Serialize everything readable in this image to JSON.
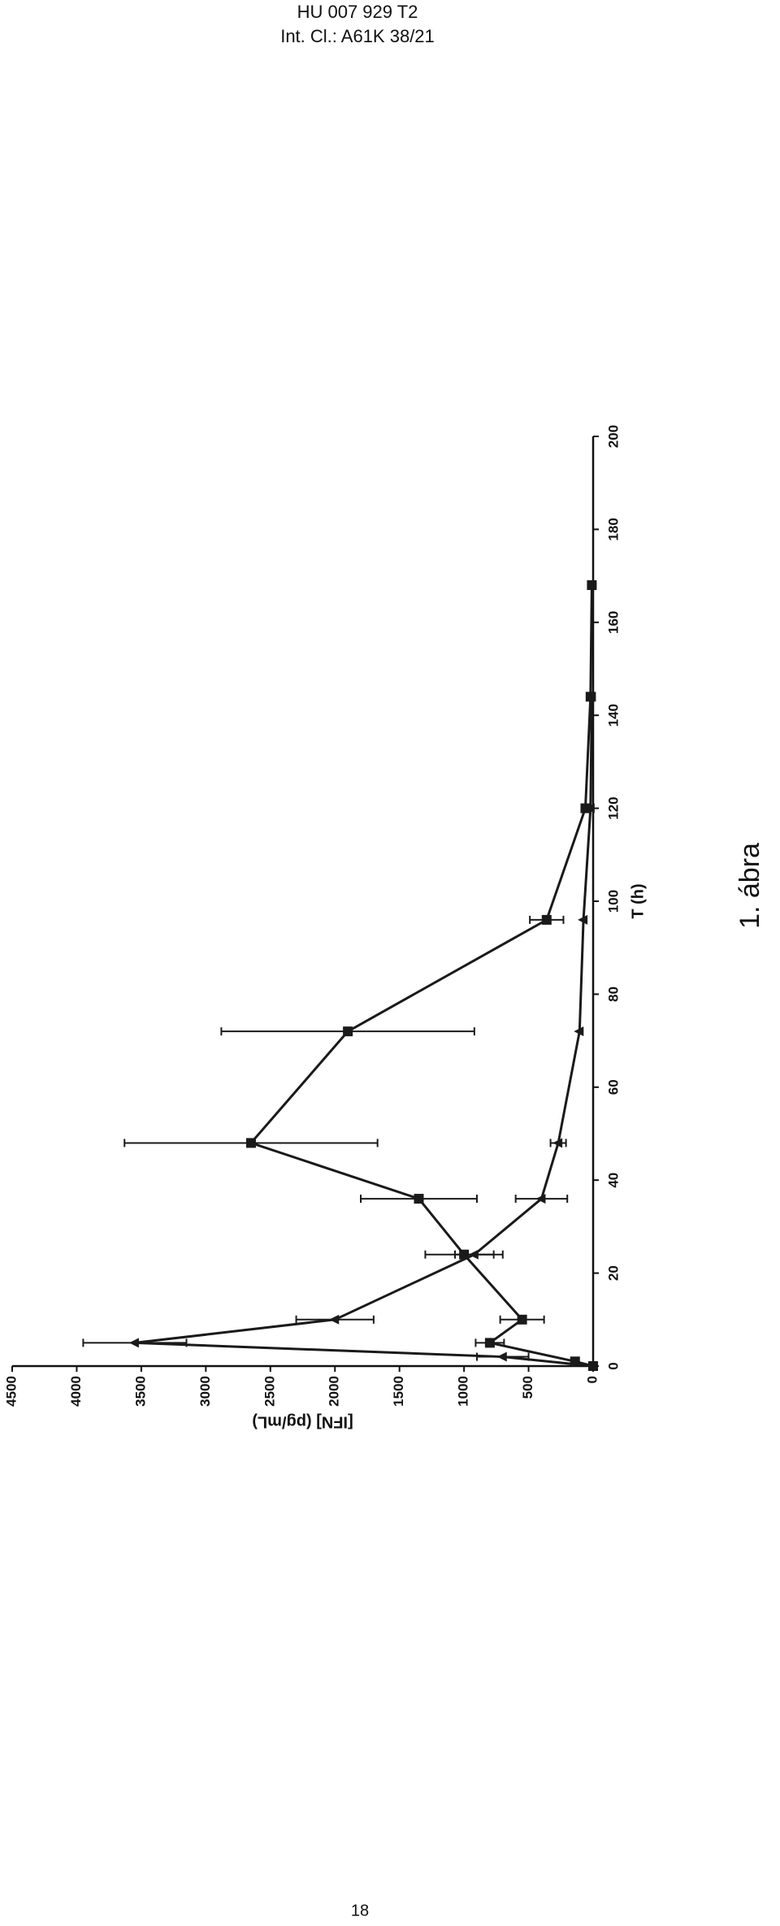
{
  "header": {
    "line1": "HU 007 929 T2",
    "line2": "Int. Cl.: A61K 38/21"
  },
  "chart_data": {
    "type": "line",
    "x_label": "T (h)",
    "y_label": "[IFN] (pg/mL)",
    "xlim": [
      0,
      200
    ],
    "xticks": [
      0,
      20,
      40,
      60,
      80,
      100,
      120,
      140,
      160,
      180,
      200
    ],
    "ylim": [
      0,
      4500
    ],
    "yticks": [
      0,
      500,
      1000,
      1500,
      2000,
      2500,
      3000,
      3500,
      4000,
      4500
    ],
    "grid": false,
    "series": [
      {
        "marker": "square",
        "color": "#1a1a1a",
        "x": [
          0,
          1,
          5,
          10,
          24,
          36,
          48,
          72,
          96,
          120,
          144,
          168
        ],
        "values": [
          0,
          140,
          800,
          550,
          1000,
          1350,
          2650,
          1900,
          360,
          60,
          20,
          10
        ],
        "errors": [
          0,
          0,
          110,
          170,
          300,
          450,
          980,
          980,
          130,
          0,
          0,
          0
        ]
      },
      {
        "marker": "triangle",
        "color": "#1a1a1a",
        "x": [
          0,
          2,
          5,
          10,
          24,
          36,
          48,
          72,
          96,
          120,
          144
        ],
        "values": [
          0,
          700,
          3550,
          2000,
          920,
          400,
          270,
          105,
          75,
          20,
          10
        ],
        "errors": [
          0,
          200,
          400,
          300,
          150,
          200,
          60,
          0,
          0,
          0,
          0
        ]
      }
    ]
  },
  "figure_caption": "1. ábra",
  "page_number": "18"
}
